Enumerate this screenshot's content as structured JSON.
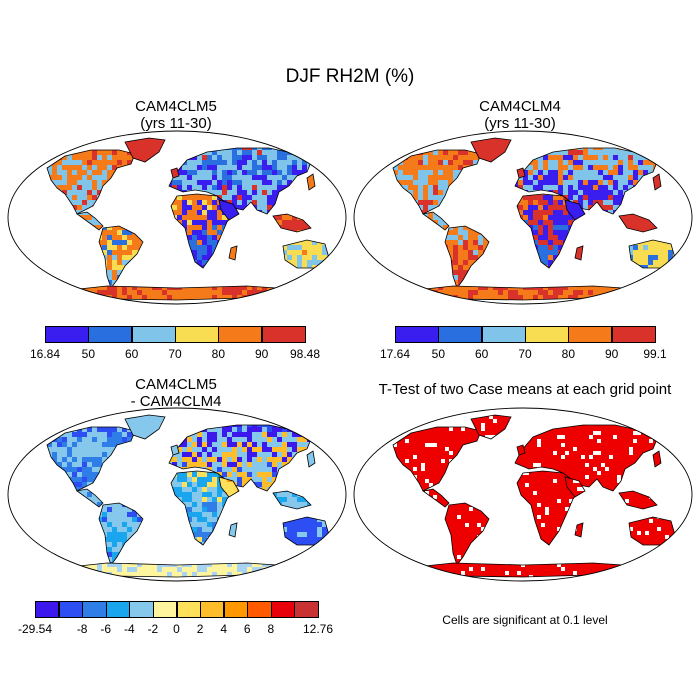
{
  "figure": {
    "title": "DJF RH2M (%)",
    "panels": [
      {
        "title_line1": "CAM4CLM5",
        "title_line2": "(yrs 11-30)"
      },
      {
        "title_line1": "CAM4CLM4",
        "title_line2": "(yrs 11-30)"
      },
      {
        "title_line1": "CAM4CLM5",
        "title_line2": "- CAM4CLM4"
      },
      {
        "title_line1": "T-Test of two Case means at each grid point",
        "note": "Cells are significant at 0.1 level"
      }
    ]
  },
  "colorbars": {
    "panel1": {
      "colors": [
        "#3a1ef0",
        "#2a6fe0",
        "#80c4ea",
        "#f8dc52",
        "#f47a1a",
        "#d8322a"
      ],
      "labels": [
        "16.84",
        "50",
        "60",
        "70",
        "80",
        "90",
        "98.48"
      ]
    },
    "panel2": {
      "colors": [
        "#3a1ef0",
        "#2a6fe0",
        "#80c4ea",
        "#f8dc52",
        "#f47a1a",
        "#d8322a"
      ],
      "labels": [
        "17.64",
        "50",
        "60",
        "70",
        "80",
        "90",
        "99.1"
      ]
    },
    "diff": {
      "colors": [
        "#3c18ec",
        "#2c4ef2",
        "#2f7ee8",
        "#1aa6ee",
        "#86c8ec",
        "#fff59e",
        "#ffe05a",
        "#ffbd2a",
        "#ff9800",
        "#ff5a00",
        "#e8000a",
        "#c83232"
      ],
      "labels": [
        "-29.54",
        "-8",
        "-6",
        "-4",
        "-2",
        "0",
        "2",
        "4",
        "6",
        "8",
        "12.76"
      ]
    }
  },
  "map_colors": {
    "ocean": "#ffffff",
    "coast": "#000000",
    "ttest": "#ee0000",
    "diff_base": "#a9d3f2"
  }
}
